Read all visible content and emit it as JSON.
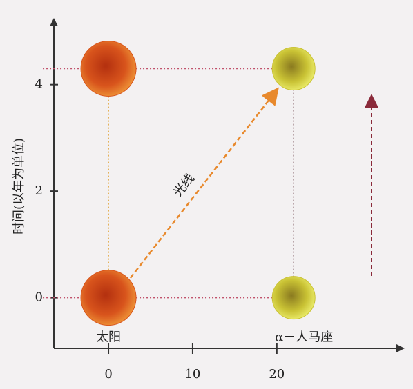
{
  "chart_data": {
    "type": "scatter",
    "ylabel": "时间(以年为单位)",
    "xlim": [
      -5.5,
      34.7
    ],
    "xticks": [
      0,
      10,
      20
    ],
    "ylim": [
      -0.95,
      5.2
    ],
    "yticks": [
      0,
      2,
      4
    ],
    "series": [
      {
        "name": "太阳",
        "color": "#d8541c",
        "x": [
          0,
          0
        ],
        "values": [
          0,
          4.3
        ]
      },
      {
        "name": "α－人马座",
        "color": "#c9c234",
        "x": [
          22,
          22
        ],
        "values": [
          0,
          4.3
        ]
      },
      {
        "name": "光线",
        "color": "#e8892c",
        "x": [
          0,
          20
        ],
        "values": [
          0,
          3.9
        ]
      }
    ]
  }
}
